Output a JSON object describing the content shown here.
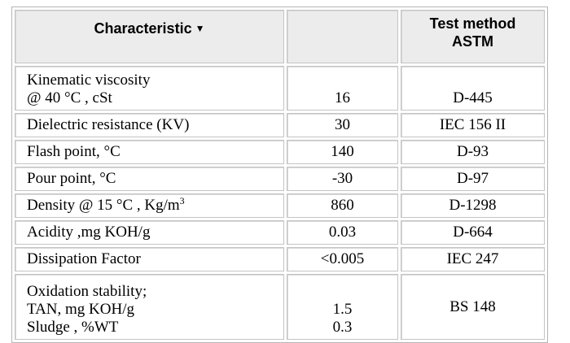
{
  "table": {
    "headers": {
      "characteristic": "Characteristic",
      "sort_icon": "sort-down-arrow",
      "value": "",
      "test_method_line1": "Test method",
      "test_method_line2": "ASTM"
    },
    "rows": [
      {
        "lines": [
          "Kinematic viscosity",
          "@ 40 °C , cSt"
        ],
        "value": "16",
        "method": "D-445"
      },
      {
        "lines": [
          "Dielectric resistance  (KV)"
        ],
        "value": "30",
        "method": "IEC 156 II"
      },
      {
        "lines": [
          "Flash point, °C"
        ],
        "value": "140",
        "method": "D-93"
      },
      {
        "lines": [
          "Pour point, °C"
        ],
        "value": "-30",
        "method": "D-97"
      },
      {
        "lines": [
          "Density @ 15 °C , Kg/m"
        ],
        "superscript": "3",
        "value": "860",
        "method": "D-1298"
      },
      {
        "lines": [
          "Acidity ,mg KOH/g"
        ],
        "value": "0.03",
        "method": "D-664"
      },
      {
        "lines": [
          "Dissipation Factor"
        ],
        "value": "<0.005",
        "method": "IEC 247"
      },
      {
        "lines": [
          "Oxidation stability;",
          "TAN, mg KOH/g",
          "Sludge ,  %WT"
        ],
        "values": [
          "1.5",
          "0.3"
        ],
        "method": "BS  148"
      }
    ]
  }
}
